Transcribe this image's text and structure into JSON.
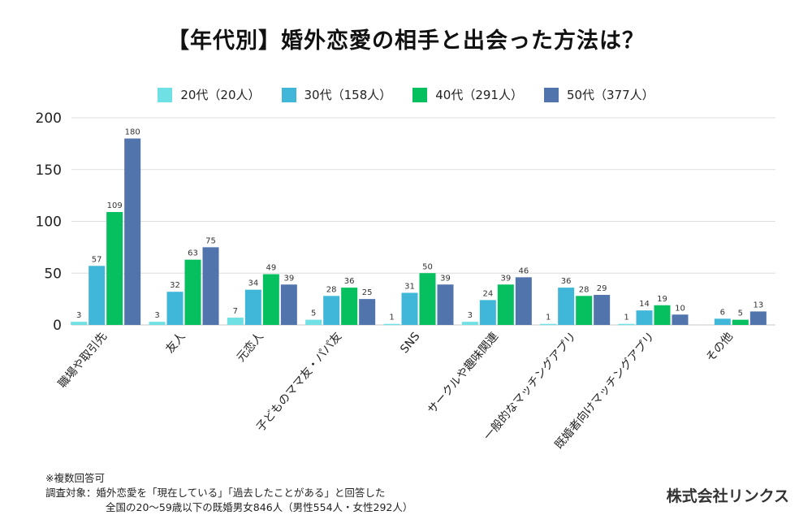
{
  "chart_data": {
    "type": "bar",
    "title": "【年代別】婚外恋愛の相手と出会った方法は？",
    "xlabel": "",
    "ylabel": "",
    "ylim": [
      0,
      200
    ],
    "yticks": [
      0,
      50,
      100,
      150,
      200
    ],
    "grid": true,
    "legend_position": "top-center",
    "categories": [
      "職場や取引先",
      "友人",
      "元恋人",
      "子どものママ友・パパ友",
      "SNS",
      "サークルや趣味関連",
      "一般的なマッチングアプリ",
      "既婚者向けマッチングアプリ",
      "その他"
    ],
    "series": [
      {
        "name": "20代（20人）",
        "color": "#6fe0e3",
        "values": [
          3,
          3,
          7,
          5,
          1,
          3,
          1,
          1,
          null
        ]
      },
      {
        "name": "30代（158人）",
        "color": "#40b7d9",
        "values": [
          57,
          32,
          34,
          28,
          31,
          24,
          36,
          14,
          6
        ]
      },
      {
        "name": "40代（291人）",
        "color": "#06bf5f",
        "values": [
          109,
          63,
          49,
          36,
          50,
          39,
          28,
          19,
          5
        ]
      },
      {
        "name": "50代（377人）",
        "color": "#5174ad",
        "values": [
          180,
          75,
          39,
          25,
          39,
          46,
          29,
          10,
          13
        ]
      }
    ]
  },
  "legend": [
    {
      "label": "20代（20人）",
      "color": "#6fe0e3"
    },
    {
      "label": "30代（158人）",
      "color": "#40b7d9"
    },
    {
      "label": "40代（291人）",
      "color": "#06bf5f"
    },
    {
      "label": "50代（377人）",
      "color": "#5174ad"
    }
  ],
  "notes": {
    "line1": "※複数回答可",
    "line2": "調査対象：婚外恋愛を「現在している」「過去したことがある」と回答した",
    "line3": "全国の20〜59歳以下の既婚男女846人（男性554人・女性292人）"
  },
  "company": "株式会社リンクス"
}
